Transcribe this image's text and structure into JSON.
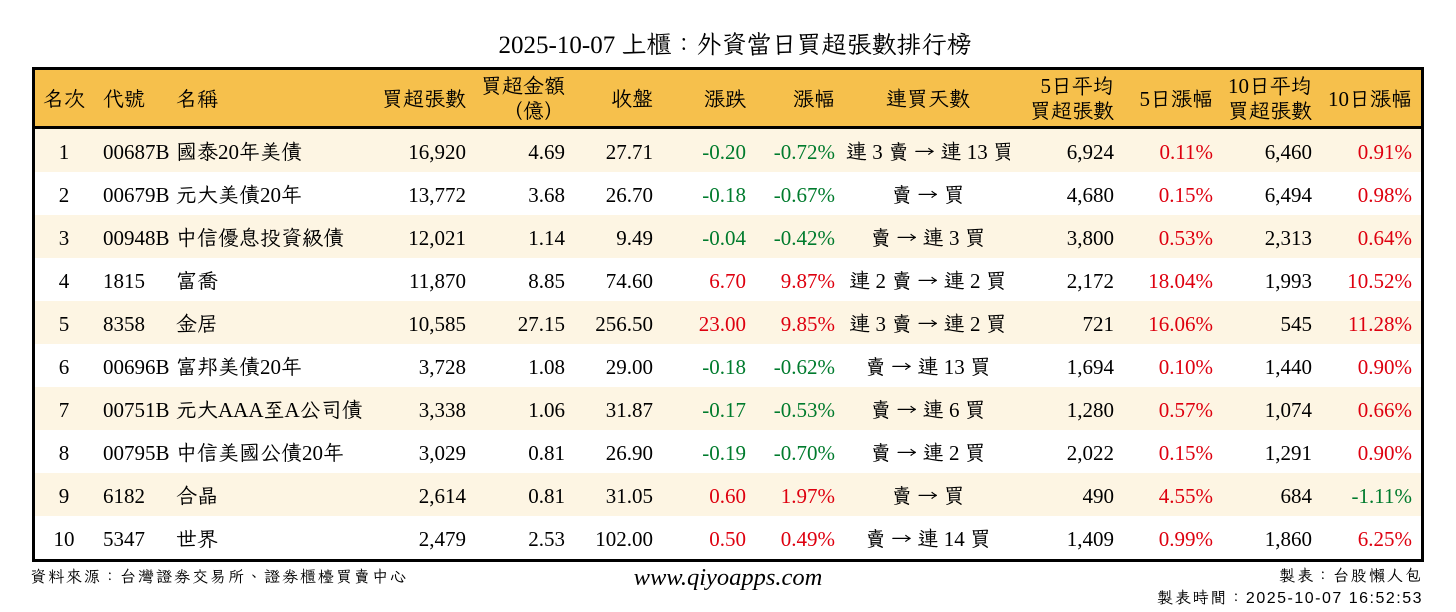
{
  "title": "2025-10-07 上櫃：外資當日買超張數排行榜",
  "colors": {
    "header_bg": "#F6C04C",
    "row_alt_bg": "#FDF5E3",
    "up_red": "#DE000F",
    "down_green": "#007B2D",
    "border_black": "#000000",
    "text_black": "#000000"
  },
  "table": {
    "columns": [
      {
        "id": "rank",
        "label": "名次"
      },
      {
        "id": "code",
        "label": "代號"
      },
      {
        "id": "name",
        "label": "名稱"
      },
      {
        "id": "volume",
        "label": "買超張數"
      },
      {
        "id": "amount",
        "label": "買超金額\n（億）"
      },
      {
        "id": "close",
        "label": "收盤"
      },
      {
        "id": "change",
        "label": "漲跌"
      },
      {
        "id": "change_pct",
        "label": "漲幅"
      },
      {
        "id": "streak",
        "label": "連買天數"
      },
      {
        "id": "avg5",
        "label": "5日平均\n買超張數"
      },
      {
        "id": "pct5",
        "label": "5日漲幅"
      },
      {
        "id": "avg10",
        "label": "10日平均\n買超張數"
      },
      {
        "id": "pct10",
        "label": "10日漲幅"
      }
    ],
    "rows": [
      {
        "rank": "1",
        "code": "00687B",
        "name": "國泰20年美債",
        "volume": "16,920",
        "amount": "4.69",
        "close": "27.71",
        "change": {
          "text": "-0.20",
          "dir": "down"
        },
        "change_pct": {
          "text": "-0.72%",
          "dir": "down"
        },
        "streak": "連 3 賣 → 連 13 買",
        "avg5": "6,924",
        "pct5": {
          "text": "0.11%",
          "dir": "up"
        },
        "avg10": "6,460",
        "pct10": {
          "text": "0.91%",
          "dir": "up"
        }
      },
      {
        "rank": "2",
        "code": "00679B",
        "name": "元大美債20年",
        "volume": "13,772",
        "amount": "3.68",
        "close": "26.70",
        "change": {
          "text": "-0.18",
          "dir": "down"
        },
        "change_pct": {
          "text": "-0.67%",
          "dir": "down"
        },
        "streak": "賣 → 買",
        "avg5": "4,680",
        "pct5": {
          "text": "0.15%",
          "dir": "up"
        },
        "avg10": "6,494",
        "pct10": {
          "text": "0.98%",
          "dir": "up"
        }
      },
      {
        "rank": "3",
        "code": "00948B",
        "name": "中信優息投資級債",
        "volume": "12,021",
        "amount": "1.14",
        "close": "9.49",
        "change": {
          "text": "-0.04",
          "dir": "down"
        },
        "change_pct": {
          "text": "-0.42%",
          "dir": "down"
        },
        "streak": "賣 → 連 3 買",
        "avg5": "3,800",
        "pct5": {
          "text": "0.53%",
          "dir": "up"
        },
        "avg10": "2,313",
        "pct10": {
          "text": "0.64%",
          "dir": "up"
        }
      },
      {
        "rank": "4",
        "code": "1815",
        "name": "富喬",
        "volume": "11,870",
        "amount": "8.85",
        "close": "74.60",
        "change": {
          "text": "6.70",
          "dir": "up"
        },
        "change_pct": {
          "text": "9.87%",
          "dir": "up"
        },
        "streak": "連 2 賣 → 連 2 買",
        "avg5": "2,172",
        "pct5": {
          "text": "18.04%",
          "dir": "up"
        },
        "avg10": "1,993",
        "pct10": {
          "text": "10.52%",
          "dir": "up"
        }
      },
      {
        "rank": "5",
        "code": "8358",
        "name": "金居",
        "volume": "10,585",
        "amount": "27.15",
        "close": "256.50",
        "change": {
          "text": "23.00",
          "dir": "up"
        },
        "change_pct": {
          "text": "9.85%",
          "dir": "up"
        },
        "streak": "連 3 賣 → 連 2 買",
        "avg5": "721",
        "pct5": {
          "text": "16.06%",
          "dir": "up"
        },
        "avg10": "545",
        "pct10": {
          "text": "11.28%",
          "dir": "up"
        }
      },
      {
        "rank": "6",
        "code": "00696B",
        "name": "富邦美債20年",
        "volume": "3,728",
        "amount": "1.08",
        "close": "29.00",
        "change": {
          "text": "-0.18",
          "dir": "down"
        },
        "change_pct": {
          "text": "-0.62%",
          "dir": "down"
        },
        "streak": "賣 → 連 13 買",
        "avg5": "1,694",
        "pct5": {
          "text": "0.10%",
          "dir": "up"
        },
        "avg10": "1,440",
        "pct10": {
          "text": "0.90%",
          "dir": "up"
        }
      },
      {
        "rank": "7",
        "code": "00751B",
        "name": "元大AAA至A公司債",
        "volume": "3,338",
        "amount": "1.06",
        "close": "31.87",
        "change": {
          "text": "-0.17",
          "dir": "down"
        },
        "change_pct": {
          "text": "-0.53%",
          "dir": "down"
        },
        "streak": "賣 → 連 6 買",
        "avg5": "1,280",
        "pct5": {
          "text": "0.57%",
          "dir": "up"
        },
        "avg10": "1,074",
        "pct10": {
          "text": "0.66%",
          "dir": "up"
        }
      },
      {
        "rank": "8",
        "code": "00795B",
        "name": "中信美國公債20年",
        "volume": "3,029",
        "amount": "0.81",
        "close": "26.90",
        "change": {
          "text": "-0.19",
          "dir": "down"
        },
        "change_pct": {
          "text": "-0.70%",
          "dir": "down"
        },
        "streak": "賣 → 連 2 買",
        "avg5": "2,022",
        "pct5": {
          "text": "0.15%",
          "dir": "up"
        },
        "avg10": "1,291",
        "pct10": {
          "text": "0.90%",
          "dir": "up"
        }
      },
      {
        "rank": "9",
        "code": "6182",
        "name": "合晶",
        "volume": "2,614",
        "amount": "0.81",
        "close": "31.05",
        "change": {
          "text": "0.60",
          "dir": "up"
        },
        "change_pct": {
          "text": "1.97%",
          "dir": "up"
        },
        "streak": "賣 → 買",
        "avg5": "490",
        "pct5": {
          "text": "4.55%",
          "dir": "up"
        },
        "avg10": "684",
        "pct10": {
          "text": "-1.11%",
          "dir": "down"
        }
      },
      {
        "rank": "10",
        "code": "5347",
        "name": "世界",
        "volume": "2,479",
        "amount": "2.53",
        "close": "102.00",
        "change": {
          "text": "0.50",
          "dir": "up"
        },
        "change_pct": {
          "text": "0.49%",
          "dir": "up"
        },
        "streak": "賣 → 連 14 買",
        "avg5": "1,409",
        "pct5": {
          "text": "0.99%",
          "dir": "up"
        },
        "avg10": "1,860",
        "pct10": {
          "text": "6.25%",
          "dir": "up"
        }
      }
    ]
  },
  "footer": {
    "source": "資料來源：台灣證券交易所、證券櫃檯買賣中心",
    "website": "www.qiyoapps.com",
    "maker": "製表：台股懶人包",
    "made_at": "製表時間：2025-10-07 16:52:53"
  }
}
